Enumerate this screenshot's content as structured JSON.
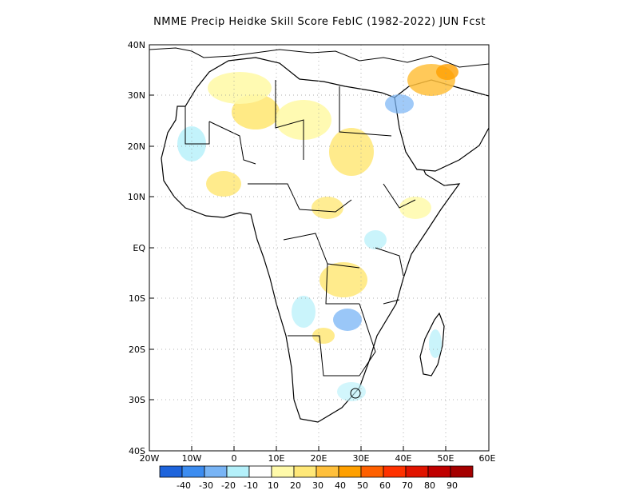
{
  "title": "NMME Precip Heidke Skill Score FebIC (1982-2022) JUN Fcst",
  "map": {
    "lat_labels": [
      "40N",
      "30N",
      "20N",
      "10N",
      "EQ",
      "10S",
      "20S",
      "30S",
      "40S"
    ],
    "lon_labels": [
      "20W",
      "10W",
      "0",
      "10E",
      "20E",
      "30E",
      "40E",
      "50E",
      "60E"
    ],
    "extent": {
      "lon": [
        -20,
        60
      ],
      "lat": [
        -40,
        40
      ]
    },
    "grid": "dotted"
  },
  "colorbar": {
    "labels": [
      "-40",
      "-30",
      "-20",
      "-10",
      "10",
      "20",
      "30",
      "40",
      "50",
      "60",
      "70",
      "80",
      "90"
    ],
    "colors": [
      "#1e64dc",
      "#3c8cf0",
      "#78b4f5",
      "#b4f0fa",
      "#ffffff",
      "#fffaaa",
      "#ffe878",
      "#ffc03c",
      "#ffa000",
      "#ff6000",
      "#ff3200",
      "#e11400",
      "#c00000",
      "#a50000"
    ]
  },
  "colors": {
    "land": "#ffffff",
    "border": "#000000",
    "grid": "#999999"
  }
}
